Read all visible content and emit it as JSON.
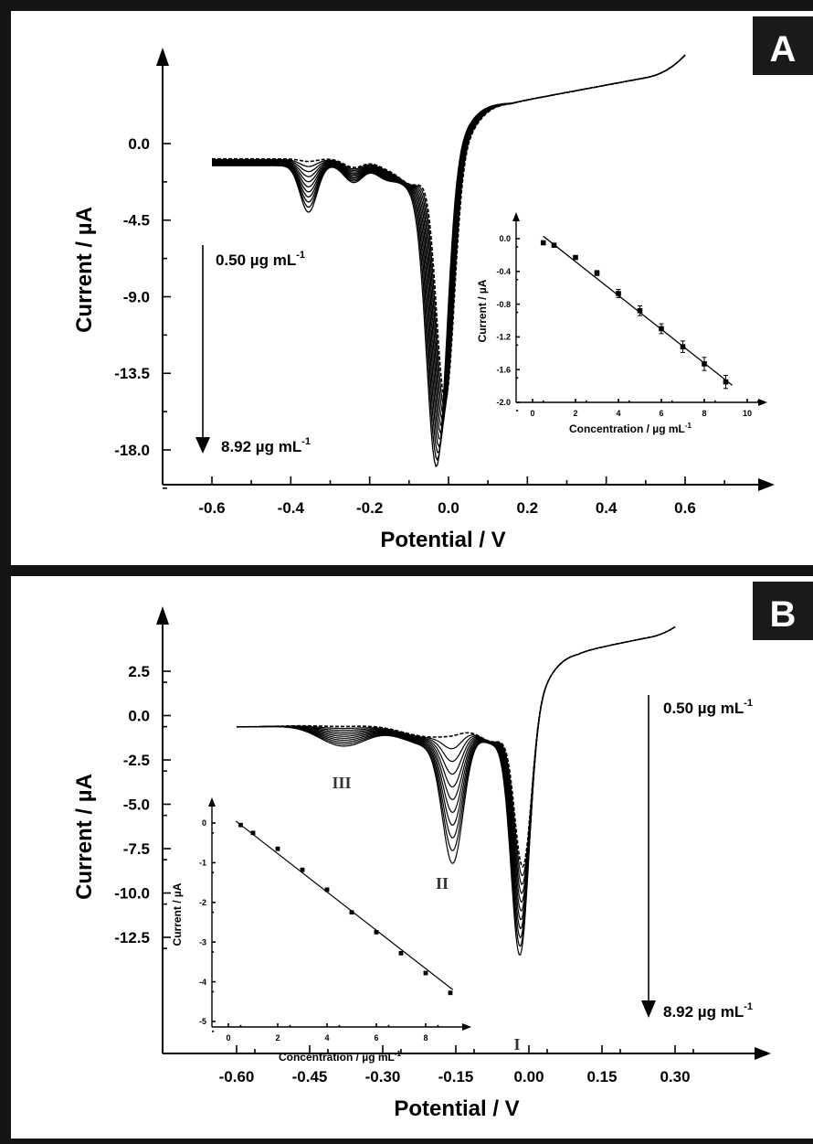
{
  "chart_data": [
    {
      "type": "line",
      "panel": "A",
      "xlabel": "Potential / V",
      "ylabel": "Current / µA",
      "xlim": [
        -0.7,
        0.72
      ],
      "ylim": [
        -21.0,
        6.5
      ],
      "xticks": [
        "-0.6",
        "-0.4",
        "-0.2",
        "0.0",
        "0.2",
        "0.4",
        "0.6"
      ],
      "xtick_values": [
        -0.6,
        -0.4,
        -0.2,
        0.0,
        0.2,
        0.4,
        0.6
      ],
      "yticks": [
        "0.0",
        "-4.5",
        "-9.0",
        "-13.5",
        "-18.0"
      ],
      "ytick_values": [
        0.0,
        -4.5,
        -9.0,
        -13.5,
        -18.0
      ],
      "concentration_start": "0.50 µg mL",
      "concentration_end": "8.92 µg mL",
      "conc_unit_exp": "-1",
      "main_peak_potential": [
        -0.01,
        -0.03
      ],
      "main_peak_current": [
        -16.0,
        -17.9
      ],
      "inset": {
        "type": "scatter",
        "xlabel": "Concentration / µg mL",
        "xlabel_exp": "-1",
        "ylabel": "Current / µA",
        "xlim": [
          -1,
          10.5
        ],
        "ylim": [
          -2.0,
          0.2
        ],
        "xticks": [
          "0",
          "2",
          "4",
          "6",
          "8",
          "10"
        ],
        "xtick_values": [
          0,
          2,
          4,
          6,
          8,
          10
        ],
        "yticks": [
          "0.0",
          "-0.4",
          "-0.8",
          "-1.2",
          "-1.6",
          "-2.0"
        ],
        "ytick_values": [
          0.0,
          -0.4,
          -0.8,
          -1.2,
          -1.6,
          -2.0
        ],
        "x": [
          0.5,
          1,
          2,
          3,
          4,
          5,
          6,
          7,
          8,
          9
        ],
        "y": [
          -0.05,
          -0.08,
          -0.23,
          -0.42,
          -0.67,
          -0.88,
          -1.1,
          -1.32,
          -1.53,
          -1.75
        ],
        "err": [
          0.02,
          0.02,
          0.02,
          0.03,
          0.05,
          0.06,
          0.06,
          0.07,
          0.08,
          0.08
        ],
        "fit": {
          "x": [
            0.5,
            9.3
          ],
          "y": [
            0.03,
            -1.79
          ]
        }
      }
    },
    {
      "type": "line",
      "panel": "B",
      "xlabel": "Potential / V",
      "ylabel": "Current / µA",
      "xlim": [
        -0.69,
        0.36
      ],
      "ylim": [
        -14.8,
        5.5
      ],
      "xticks": [
        "-0.60",
        "-0.45",
        "-0.30",
        "-0.15",
        "0.00",
        "0.15",
        "0.30"
      ],
      "xtick_values": [
        -0.6,
        -0.45,
        -0.3,
        -0.15,
        0.0,
        0.15,
        0.3
      ],
      "yticks": [
        "2.5",
        "0.0",
        "-2.5",
        "-5.0",
        "-7.5",
        "-10.0",
        "-12.5"
      ],
      "ytick_values": [
        2.5,
        0.0,
        -2.5,
        -5.0,
        -7.5,
        -10.0,
        -12.5
      ],
      "concentration_start": "0.50 µg mL",
      "concentration_end": "8.92 µg mL",
      "conc_unit_exp": "-1",
      "peak_labels": [
        "I",
        "II",
        "III"
      ],
      "inset": {
        "type": "scatter",
        "xlabel": "Concentration / µg mL",
        "xlabel_exp": "-1",
        "ylabel": "Current / µA",
        "xlim": [
          -1,
          10
        ],
        "ylim": [
          -5,
          0.6
        ],
        "xticks": [
          "0",
          "2",
          "4",
          "6",
          "8"
        ],
        "xtick_values": [
          0,
          2,
          4,
          6,
          8
        ],
        "yticks": [
          "0",
          "-1",
          "-2",
          "-3",
          "-4",
          "-5"
        ],
        "ytick_values": [
          0,
          -1,
          -2,
          -3,
          -4,
          -5
        ],
        "x": [
          0.5,
          1,
          2,
          3,
          4,
          5,
          6,
          7,
          8,
          9
        ],
        "y": [
          -0.05,
          -0.25,
          -0.65,
          -1.18,
          -1.68,
          -2.25,
          -2.75,
          -3.28,
          -3.78,
          -4.28
        ],
        "fit": {
          "x": [
            0.3,
            9.1
          ],
          "y": [
            0.05,
            -4.2
          ]
        }
      }
    }
  ],
  "panels": {
    "a_label": "A",
    "b_label": "B"
  },
  "colors": {
    "frame": "#141414",
    "badge": "#1a1a1a",
    "curve": "#000000"
  }
}
